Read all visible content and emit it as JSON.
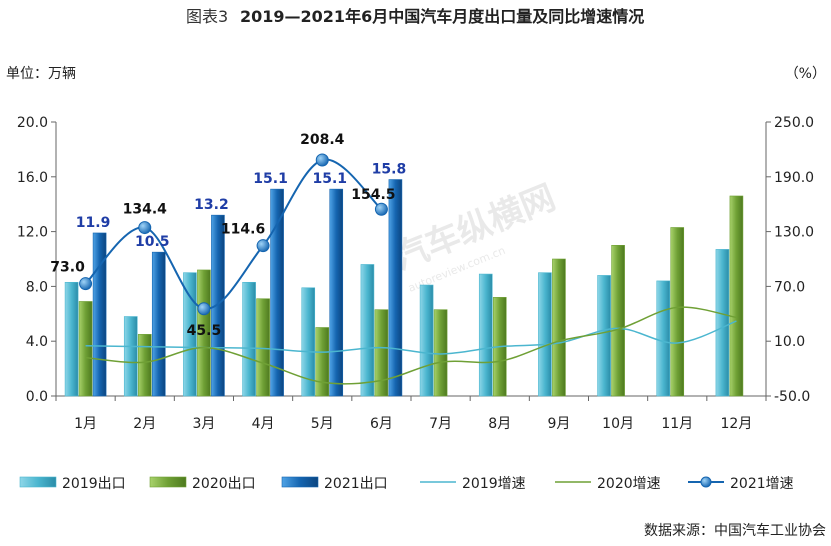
{
  "chart_data": {
    "type": "bar",
    "title_prefix": "图表3",
    "title": "2019—2021年6月中国汽车月度出口量及同比增速情况",
    "left_unit": "单位：万辆",
    "right_unit": "（%）",
    "source": "数据来源：中国汽车工业协会",
    "watermark": "汽车纵横网",
    "watermark_url": "autoreview.com.cn",
    "categories": [
      "1月",
      "2月",
      "3月",
      "4月",
      "5月",
      "6月",
      "7月",
      "8月",
      "9月",
      "10月",
      "11月",
      "12月"
    ],
    "y_left": {
      "min": 0,
      "max": 20,
      "ticks": [
        "0.0",
        "4.0",
        "8.0",
        "12.0",
        "16.0",
        "20.0"
      ]
    },
    "y_right": {
      "min": -50,
      "max": 250,
      "ticks": [
        "-50.0",
        "10.0",
        "70.0",
        "130.0",
        "190.0",
        "250.0"
      ]
    },
    "bar_series": [
      {
        "name": "2019出口",
        "color": "#4BB6CF",
        "values": [
          8.3,
          5.8,
          9.0,
          8.3,
          7.9,
          9.6,
          8.1,
          8.9,
          9.0,
          8.8,
          8.4,
          10.7
        ]
      },
      {
        "name": "2020出口",
        "color": "#6FA035",
        "values": [
          6.9,
          4.5,
          9.2,
          7.1,
          5.0,
          6.3,
          6.3,
          7.2,
          10.0,
          11.0,
          12.3,
          14.6
        ]
      },
      {
        "name": "2021出口",
        "color": "#1565B0",
        "values": [
          11.9,
          10.5,
          13.2,
          15.1,
          15.1,
          15.8
        ],
        "labels": [
          "11.9",
          "10.5",
          "13.2",
          "15.1",
          "15.1",
          "15.8"
        ]
      }
    ],
    "line_series": [
      {
        "name": "2019增速",
        "color": "#4BB6CF",
        "values": [
          5,
          4,
          3,
          2,
          -2,
          3,
          -4,
          4,
          8,
          24,
          8,
          32
        ]
      },
      {
        "name": "2020增速",
        "color": "#6FA035",
        "values": [
          -8,
          -13,
          3,
          -14,
          -35,
          -33,
          -13,
          -12,
          10,
          23,
          47,
          36
        ]
      },
      {
        "name": "2021增速",
        "color": "#1565B0",
        "values": [
          73.0,
          134.4,
          45.5,
          114.6,
          208.4,
          154.5
        ],
        "labels": [
          "73.0",
          "134.4",
          "45.5",
          "114.6",
          "208.4",
          "154.5"
        ]
      }
    ],
    "legend": [
      "2019出口",
      "2020出口",
      "2021出口",
      "2019增速",
      "2020增速",
      "2021增速"
    ],
    "legend_position": "bottom",
    "grid": false
  }
}
